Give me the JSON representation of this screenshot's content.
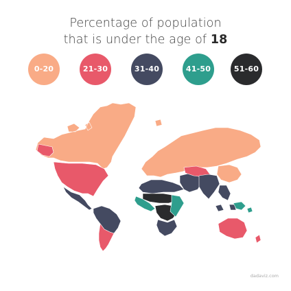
{
  "title": {
    "line1": "Percentage of population",
    "line2_prefix": "that is under the age of ",
    "line2_bold": "18"
  },
  "legend": [
    {
      "label": "0-20",
      "color": "#F9AB86"
    },
    {
      "label": "21-30",
      "color": "#E8596A"
    },
    {
      "label": "31-40",
      "color": "#444A61"
    },
    {
      "label": "41-50",
      "color": "#2E9E8D"
    },
    {
      "label": "51-60",
      "color": "#2A2B2D"
    }
  ],
  "map": {
    "regions": [
      {
        "name": "North America & Greenland",
        "bin": "0-20"
      },
      {
        "name": "United States",
        "bin": "21-30"
      },
      {
        "name": "Mexico & Central America",
        "bin": "31-40"
      },
      {
        "name": "South America (north)",
        "bin": "31-40"
      },
      {
        "name": "Southern Cone",
        "bin": "21-30"
      },
      {
        "name": "Europe & Russia",
        "bin": "0-20"
      },
      {
        "name": "North Africa",
        "bin": "31-40"
      },
      {
        "name": "Middle East",
        "bin": "31-40"
      },
      {
        "name": "Central Asia",
        "bin": "21-30"
      },
      {
        "name": "Sahel",
        "bin": "51-60"
      },
      {
        "name": "West Africa",
        "bin": "41-50"
      },
      {
        "name": "Central Africa",
        "bin": "51-60"
      },
      {
        "name": "East Africa",
        "bin": "41-50"
      },
      {
        "name": "Southern Africa",
        "bin": "31-40"
      },
      {
        "name": "South Asia",
        "bin": "31-40"
      },
      {
        "name": "China",
        "bin": "0-20"
      },
      {
        "name": "Southeast Asia",
        "bin": "31-40"
      },
      {
        "name": "Pacific islands",
        "bin": "41-50"
      },
      {
        "name": "Australia",
        "bin": "21-30"
      },
      {
        "name": "New Zealand",
        "bin": "21-30"
      }
    ]
  },
  "credit": "dadaviz.com"
}
